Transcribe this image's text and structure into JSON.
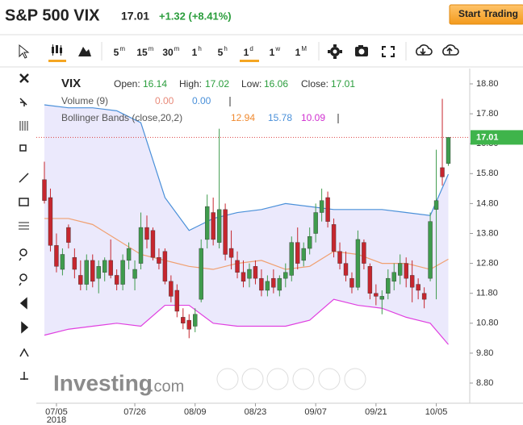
{
  "header": {
    "title": "S&P 500 VIX",
    "change": "+1.32 (+8.41%)",
    "button": "Start Trading"
  },
  "toolbar": {
    "intervals": [
      {
        "n": "5",
        "u": "m"
      },
      {
        "n": "15",
        "u": "m"
      },
      {
        "n": "30",
        "u": "m"
      },
      {
        "n": "1",
        "u": "h"
      },
      {
        "n": "5",
        "u": "h"
      },
      {
        "n": "1",
        "u": "d"
      },
      {
        "n": "1",
        "u": "w"
      },
      {
        "n": "1",
        "u": "M"
      }
    ]
  },
  "legend": {
    "symbol": "VIX",
    "open": "Open:",
    "high": "High:",
    "low": "Low:",
    "close": "Close:",
    "volume": "Volume (9)",
    "volume_values": [
      "0.00",
      "0.00"
    ],
    "bollinger": "Bollinger Bands (close,20,2)"
  },
  "watermark": {
    "brand": "Investing",
    "suffix": ".com"
  },
  "chart_data": {
    "type": "candlestick",
    "candles": [
      [
        15.6,
        16.2,
        14.8,
        14.9
      ],
      [
        15.0,
        15.3,
        13.2,
        13.4
      ],
      [
        13.4,
        13.8,
        12.5,
        12.7
      ],
      [
        12.6,
        13.3,
        12.4,
        13.1
      ],
      [
        14.0,
        14.1,
        13.3,
        13.5
      ],
      [
        13.0,
        13.3,
        12.3,
        12.6
      ],
      [
        12.4,
        12.9,
        11.9,
        12.1
      ],
      [
        12.1,
        13.1,
        11.9,
        12.9
      ],
      [
        12.9,
        13.1,
        12.0,
        12.2
      ],
      [
        12.3,
        12.9,
        11.8,
        12.7
      ],
      [
        12.5,
        13.0,
        12.2,
        12.9
      ],
      [
        12.9,
        13.6,
        12.3,
        12.4
      ],
      [
        12.4,
        12.6,
        11.9,
        12.1
      ],
      [
        12.1,
        13.1,
        11.9,
        12.9
      ],
      [
        12.9,
        13.5,
        12.6,
        13.3
      ],
      [
        12.3,
        12.9,
        11.9,
        12.6
      ],
      [
        12.8,
        14.5,
        12.6,
        14.0
      ],
      [
        14.0,
        14.4,
        13.3,
        13.6
      ],
      [
        13.9,
        14.0,
        12.9,
        13.0
      ],
      [
        13.0,
        13.3,
        12.6,
        12.8
      ],
      [
        13.2,
        13.3,
        12.1,
        12.2
      ],
      [
        12.2,
        12.4,
        11.5,
        11.7
      ],
      [
        11.9,
        12.1,
        11.0,
        11.2
      ],
      [
        11.0,
        11.3,
        10.6,
        10.8
      ],
      [
        10.9,
        11.1,
        10.3,
        10.6
      ],
      [
        10.7,
        11.3,
        10.5,
        11.1
      ],
      [
        11.6,
        13.6,
        11.5,
        13.3
      ],
      [
        13.6,
        15.1,
        13.3,
        14.7
      ],
      [
        14.5,
        15.0,
        13.4,
        13.6
      ],
      [
        13.5,
        17.3,
        13.3,
        14.6
      ],
      [
        14.6,
        14.8,
        12.9,
        13.1
      ],
      [
        13.3,
        13.9,
        12.6,
        13.0
      ],
      [
        12.9,
        13.2,
        12.3,
        12.5
      ],
      [
        12.5,
        12.9,
        12.0,
        12.2
      ],
      [
        12.3,
        12.8,
        12.0,
        12.6
      ],
      [
        12.7,
        12.9,
        12.1,
        12.3
      ],
      [
        12.3,
        12.6,
        11.7,
        11.9
      ],
      [
        11.9,
        12.4,
        11.7,
        12.2
      ],
      [
        12.3,
        12.6,
        11.8,
        12.0
      ],
      [
        11.9,
        12.4,
        11.7,
        12.3
      ],
      [
        12.3,
        12.8,
        12.0,
        12.5
      ],
      [
        12.4,
        13.7,
        12.2,
        13.5
      ],
      [
        13.5,
        14.0,
        12.6,
        12.8
      ],
      [
        12.9,
        13.5,
        12.7,
        13.3
      ],
      [
        13.3,
        14.0,
        13.1,
        13.7
      ],
      [
        13.8,
        14.8,
        13.5,
        14.5
      ],
      [
        14.5,
        15.3,
        14.2,
        14.9
      ],
      [
        15.0,
        15.2,
        14.0,
        14.2
      ],
      [
        14.1,
        14.3,
        13.0,
        13.2
      ],
      [
        13.2,
        13.5,
        12.6,
        12.8
      ],
      [
        12.8,
        13.2,
        12.2,
        12.4
      ],
      [
        12.3,
        12.5,
        11.8,
        12.0
      ],
      [
        12.0,
        13.9,
        11.9,
        13.6
      ],
      [
        13.5,
        13.6,
        12.6,
        12.8
      ],
      [
        12.7,
        12.8,
        11.6,
        11.8
      ],
      [
        11.8,
        12.1,
        11.4,
        11.7
      ],
      [
        11.6,
        11.9,
        11.1,
        11.7
      ],
      [
        11.8,
        12.6,
        11.6,
        12.3
      ],
      [
        12.2,
        12.8,
        11.9,
        12.5
      ],
      [
        12.4,
        13.1,
        12.1,
        12.8
      ],
      [
        12.8,
        13.0,
        12.0,
        12.3
      ],
      [
        12.4,
        12.9,
        11.5,
        12.0
      ],
      [
        12.1,
        12.3,
        11.6,
        11.9
      ],
      [
        11.8,
        12.0,
        11.3,
        11.6
      ],
      [
        12.3,
        14.5,
        12.2,
        14.2
      ],
      [
        14.6,
        16.6,
        11.6,
        14.9
      ],
      [
        16.0,
        18.3,
        15.4,
        15.69
      ],
      [
        16.14,
        17.02,
        16.06,
        17.01
      ]
    ],
    "bollinger": {
      "x": [
        0,
        4,
        8,
        12,
        16,
        20,
        24,
        28,
        32,
        36,
        40,
        44,
        48,
        52,
        56,
        60,
        64,
        67
      ],
      "upper": [
        18.1,
        18.0,
        18.0,
        17.9,
        17.5,
        15.0,
        13.9,
        14.3,
        14.5,
        14.6,
        14.8,
        14.7,
        14.6,
        14.6,
        14.6,
        14.5,
        14.4,
        15.78
      ],
      "middle": [
        14.3,
        14.3,
        14.1,
        13.6,
        13.1,
        12.9,
        12.7,
        12.6,
        12.8,
        12.9,
        12.6,
        12.7,
        13.2,
        13.1,
        12.8,
        12.8,
        12.6,
        12.94
      ],
      "lower": [
        10.4,
        10.6,
        10.7,
        10.8,
        10.7,
        11.4,
        11.4,
        10.8,
        10.7,
        10.7,
        10.7,
        10.9,
        11.6,
        11.4,
        11.3,
        11.0,
        10.8,
        10.09
      ],
      "colors": [
        "#4a90d9",
        "#f0a070",
        "#e040e0"
      ]
    },
    "up_color": "#3f9b4d",
    "down_color": "#c6262e",
    "ylim": [
      8.3,
      19.2
    ],
    "yticks": [
      {
        "value": 18.8,
        "label": "18.80"
      },
      {
        "value": 17.8,
        "label": "17.80"
      },
      {
        "value": 16.8,
        "label": "16.80"
      },
      {
        "value": 15.8,
        "label": "15.80"
      },
      {
        "value": 14.8,
        "label": "14.80"
      },
      {
        "value": 13.8,
        "label": "13.80"
      },
      {
        "value": 12.8,
        "label": "12.80"
      },
      {
        "value": 11.8,
        "label": "11.80"
      },
      {
        "value": 10.8,
        "label": "10.80"
      },
      {
        "value": 9.8,
        "label": "9.80"
      },
      {
        "value": 8.8,
        "label": "8.80"
      }
    ],
    "xlim": [
      -1.5,
      70.5
    ],
    "xticks": [
      {
        "value": 2,
        "label": "07/05"
      },
      {
        "value": 15,
        "label": "07/26"
      },
      {
        "value": 25,
        "label": "08/09"
      },
      {
        "value": 35,
        "label": "08/23"
      },
      {
        "value": 45,
        "label": "09/07"
      },
      {
        "value": 55,
        "label": "09/21"
      },
      {
        "value": 65,
        "label": "10/05"
      }
    ],
    "year": "2018"
  }
}
